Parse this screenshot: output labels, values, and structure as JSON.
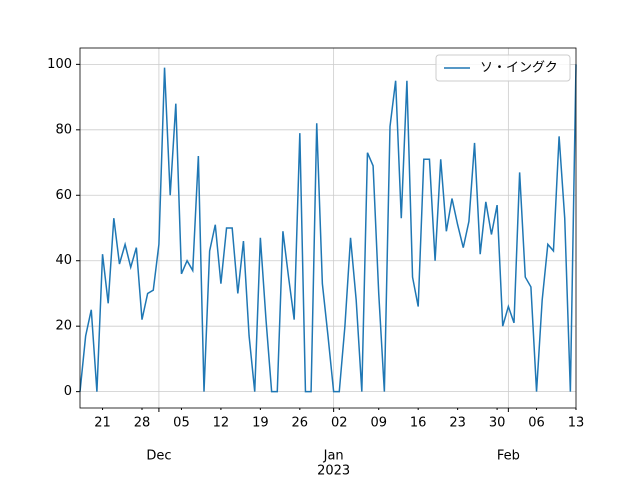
{
  "chart_data": {
    "type": "line",
    "series": [
      {
        "name": "ソ・イングク",
        "color": "#1f77b4",
        "values": [
          0,
          17,
          25,
          0,
          42,
          27,
          53,
          39,
          45,
          38,
          44,
          22,
          30,
          31,
          45,
          99,
          60,
          88,
          36,
          40,
          37,
          72,
          0,
          43,
          51,
          33,
          50,
          50,
          30,
          46,
          17,
          0,
          47,
          22,
          0,
          0,
          49,
          35,
          22,
          79,
          0,
          0,
          82,
          33,
          17,
          0,
          0,
          20,
          47,
          28,
          0,
          73,
          69,
          30,
          0,
          81,
          95,
          53,
          95,
          35,
          26,
          71,
          71,
          40,
          71,
          49,
          59,
          51,
          44,
          52,
          76,
          42,
          58,
          48,
          57,
          20,
          26,
          21,
          67,
          35,
          32,
          0,
          28,
          45,
          43,
          78,
          53,
          0,
          100
        ]
      }
    ],
    "xlim": [
      0,
      88
    ],
    "xticks": [
      {
        "value": 14,
        "label": "Dec"
      },
      {
        "value": 45,
        "label": "Jan"
      },
      {
        "value": 76,
        "label": "Feb"
      }
    ],
    "xtick_year": {
      "value": 45,
      "label": "2023"
    },
    "xticks_minor": [
      {
        "value": 4,
        "label": "21"
      },
      {
        "value": 11,
        "label": "28"
      },
      {
        "value": 18,
        "label": "05"
      },
      {
        "value": 25,
        "label": "12"
      },
      {
        "value": 32,
        "label": "19"
      },
      {
        "value": 39,
        "label": "26"
      },
      {
        "value": 46,
        "label": "02"
      },
      {
        "value": 53,
        "label": "09"
      },
      {
        "value": 60,
        "label": "16"
      },
      {
        "value": 67,
        "label": "23"
      },
      {
        "value": 74,
        "label": "30"
      },
      {
        "value": 81,
        "label": "06"
      },
      {
        "value": 88,
        "label": "13"
      }
    ],
    "ylim": [
      -5,
      105
    ],
    "yticks": [
      0,
      20,
      40,
      60,
      80,
      100
    ],
    "grid": true,
    "legend": "upper right"
  }
}
